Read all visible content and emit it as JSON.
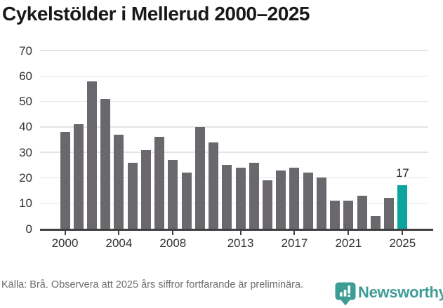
{
  "title": "Cykelstölder i Mellerud 2000–2025",
  "chart_data": {
    "type": "bar",
    "title": "Cykelstölder i Mellerud 2000–2025",
    "categories": [
      2000,
      2001,
      2002,
      2003,
      2004,
      2005,
      2006,
      2007,
      2008,
      2009,
      2010,
      2011,
      2012,
      2013,
      2014,
      2015,
      2016,
      2017,
      2018,
      2019,
      2020,
      2021,
      2022,
      2023,
      2024,
      2025
    ],
    "values": [
      38,
      41,
      58,
      51,
      37,
      26,
      31,
      36,
      27,
      22,
      40,
      34,
      25,
      24,
      26,
      19,
      23,
      24,
      22,
      20,
      11,
      11,
      13,
      5,
      12,
      17
    ],
    "xlabel": "",
    "ylabel": "",
    "ylim": [
      0,
      70
    ],
    "yticks": [
      0,
      10,
      20,
      30,
      40,
      50,
      60,
      70
    ],
    "xtick_labels": [
      "2000",
      "2004",
      "2008",
      "2013",
      "2017",
      "2021",
      "2025"
    ],
    "xtick_years": [
      2000,
      2004,
      2008,
      2013,
      2017,
      2021,
      2025
    ],
    "grid": true,
    "legend_position": "none",
    "bar_color": "#6a686d",
    "highlight_color": "#0ba59d",
    "highlight_year": 2025,
    "highlight_value_label": "17"
  },
  "footer": {
    "source_text": "Källa: Brå. Observera att 2025 års siffror fortfarande är preliminära.",
    "brand": "Newsworthy",
    "brand_color": "#3d9c95"
  }
}
